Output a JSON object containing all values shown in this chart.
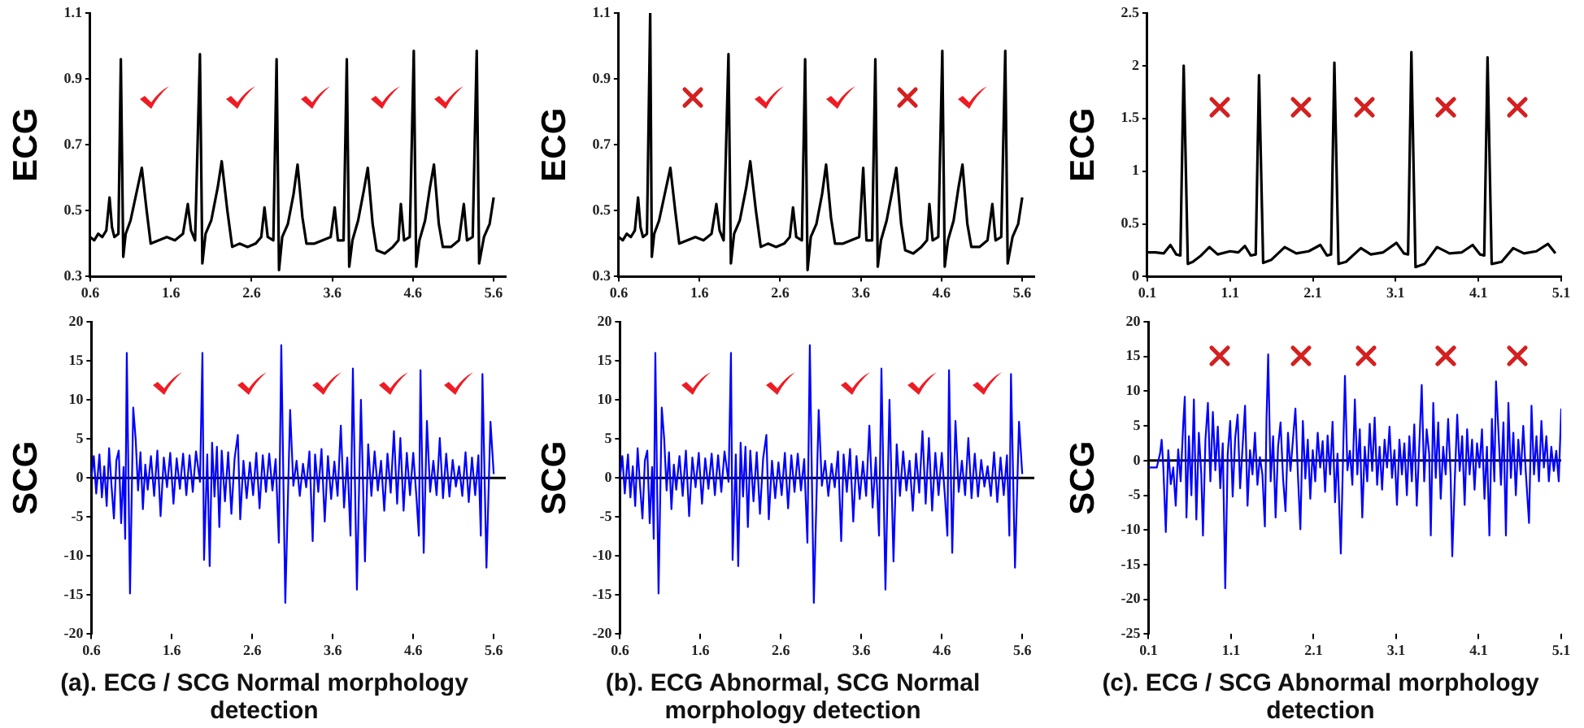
{
  "chart_data": [
    {
      "type": "line",
      "ylabel": "ECG",
      "xlim": [
        0.6,
        5.75
      ],
      "xticks": [
        0.6,
        1.6,
        2.6,
        3.6,
        4.6,
        5.6
      ],
      "ylim": [
        0.3,
        1.1
      ],
      "yticks": [
        0.3,
        0.5,
        0.7,
        0.9,
        1.1
      ],
      "series": [
        {
          "color": "#000000",
          "x": [
            0.6,
            0.65,
            0.7,
            0.75,
            0.8,
            0.84,
            0.87,
            0.9,
            0.95,
            0.98,
            1.01,
            1.04,
            1.1,
            1.17,
            1.24,
            1.3,
            1.35,
            1.45,
            1.55,
            1.65,
            1.75,
            1.81,
            1.85,
            1.9,
            1.96,
            1.99,
            2.03,
            2.1,
            2.18,
            2.23,
            2.3,
            2.36,
            2.45,
            2.55,
            2.65,
            2.72,
            2.76,
            2.8,
            2.87,
            2.91,
            2.94,
            2.98,
            3.05,
            3.12,
            3.17,
            3.23,
            3.28,
            3.38,
            3.48,
            3.58,
            3.63,
            3.67,
            3.74,
            3.78,
            3.81,
            3.85,
            3.92,
            3.99,
            4.04,
            4.1,
            4.15,
            4.25,
            4.35,
            4.42,
            4.45,
            4.49,
            4.56,
            4.61,
            4.64,
            4.68,
            4.75,
            4.81,
            4.86,
            4.92,
            4.97,
            5.07,
            5.17,
            5.23,
            5.27,
            5.34,
            5.39,
            5.42,
            5.48,
            5.55,
            5.6
          ],
          "values": [
            0.42,
            0.41,
            0.43,
            0.42,
            0.44,
            0.54,
            0.45,
            0.42,
            0.43,
            0.96,
            0.36,
            0.43,
            0.47,
            0.55,
            0.63,
            0.5,
            0.4,
            0.41,
            0.42,
            0.41,
            0.43,
            0.52,
            0.44,
            0.41,
            0.975,
            0.34,
            0.43,
            0.47,
            0.57,
            0.65,
            0.5,
            0.39,
            0.4,
            0.39,
            0.4,
            0.42,
            0.51,
            0.42,
            0.41,
            0.96,
            0.32,
            0.42,
            0.46,
            0.55,
            0.64,
            0.48,
            0.4,
            0.4,
            0.41,
            0.42,
            0.51,
            0.41,
            0.41,
            0.96,
            0.33,
            0.41,
            0.47,
            0.56,
            0.63,
            0.46,
            0.38,
            0.37,
            0.39,
            0.41,
            0.52,
            0.41,
            0.42,
            0.985,
            0.33,
            0.41,
            0.47,
            0.57,
            0.64,
            0.46,
            0.39,
            0.39,
            0.41,
            0.52,
            0.41,
            0.42,
            0.985,
            0.34,
            0.42,
            0.46,
            0.54
          ]
        }
      ]
    },
    {
      "type": "line",
      "ylabel": "ECG",
      "xlim": [
        0.6,
        5.75
      ],
      "xticks": [
        0.6,
        1.6,
        2.6,
        3.6,
        4.6,
        5.6
      ],
      "ylim": [
        0.3,
        1.1
      ],
      "yticks": [
        0.3,
        0.5,
        0.7,
        0.9,
        1.1
      ],
      "series": [
        {
          "color": "#000000",
          "x": [
            0.6,
            0.65,
            0.7,
            0.75,
            0.8,
            0.84,
            0.87,
            0.9,
            0.95,
            0.99,
            1.01,
            1.04,
            1.1,
            1.17,
            1.24,
            1.3,
            1.35,
            1.45,
            1.55,
            1.65,
            1.75,
            1.81,
            1.85,
            1.9,
            1.96,
            1.99,
            2.03,
            2.1,
            2.18,
            2.23,
            2.3,
            2.36,
            2.45,
            2.55,
            2.65,
            2.72,
            2.76,
            2.8,
            2.87,
            2.91,
            2.94,
            2.98,
            3.05,
            3.12,
            3.17,
            3.23,
            3.28,
            3.38,
            3.48,
            3.58,
            3.63,
            3.67,
            3.74,
            3.78,
            3.81,
            3.85,
            3.92,
            3.99,
            4.04,
            4.1,
            4.15,
            4.25,
            4.35,
            4.42,
            4.45,
            4.49,
            4.56,
            4.61,
            4.64,
            4.68,
            4.75,
            4.81,
            4.86,
            4.92,
            4.97,
            5.07,
            5.17,
            5.23,
            5.27,
            5.34,
            5.39,
            5.42,
            5.48,
            5.55,
            5.6
          ],
          "values": [
            0.42,
            0.41,
            0.43,
            0.42,
            0.44,
            0.54,
            0.45,
            0.42,
            0.43,
            1.1,
            0.36,
            0.43,
            0.47,
            0.55,
            0.63,
            0.5,
            0.4,
            0.41,
            0.42,
            0.41,
            0.43,
            0.52,
            0.44,
            0.41,
            0.975,
            0.34,
            0.43,
            0.47,
            0.57,
            0.65,
            0.5,
            0.39,
            0.4,
            0.39,
            0.4,
            0.42,
            0.51,
            0.42,
            0.41,
            0.96,
            0.32,
            0.42,
            0.46,
            0.55,
            0.64,
            0.48,
            0.4,
            0.4,
            0.41,
            0.42,
            0.63,
            0.41,
            0.41,
            0.96,
            0.33,
            0.41,
            0.47,
            0.56,
            0.63,
            0.46,
            0.38,
            0.37,
            0.39,
            0.41,
            0.52,
            0.41,
            0.42,
            0.985,
            0.33,
            0.41,
            0.47,
            0.57,
            0.64,
            0.46,
            0.39,
            0.39,
            0.41,
            0.52,
            0.41,
            0.42,
            0.985,
            0.34,
            0.42,
            0.46,
            0.54
          ]
        }
      ]
    },
    {
      "type": "line",
      "ylabel": "ECG",
      "xlim": [
        0.1,
        5.1
      ],
      "xticks": [
        0.1,
        1.1,
        2.1,
        3.1,
        4.1,
        5.1
      ],
      "ylim": [
        0,
        2.5
      ],
      "yticks": [
        0,
        0.5,
        1,
        1.5,
        2,
        2.5
      ],
      "series": [
        {
          "color": "#000000",
          "x": [
            0.1,
            0.2,
            0.3,
            0.38,
            0.45,
            0.5,
            0.54,
            0.59,
            0.65,
            0.75,
            0.85,
            0.95,
            1.1,
            1.2,
            1.28,
            1.35,
            1.41,
            1.45,
            1.5,
            1.6,
            1.76,
            1.9,
            2.05,
            2.19,
            2.27,
            2.32,
            2.36,
            2.41,
            2.5,
            2.68,
            2.8,
            2.95,
            3.11,
            3.2,
            3.25,
            3.29,
            3.34,
            3.45,
            3.6,
            3.75,
            3.9,
            4.03,
            4.12,
            4.17,
            4.21,
            4.26,
            4.38,
            4.52,
            4.65,
            4.8,
            4.94,
            5.03
          ],
          "values": [
            0.23,
            0.23,
            0.22,
            0.3,
            0.21,
            0.2,
            2.0,
            0.12,
            0.14,
            0.2,
            0.28,
            0.21,
            0.24,
            0.23,
            0.29,
            0.2,
            0.21,
            1.91,
            0.13,
            0.16,
            0.28,
            0.22,
            0.24,
            0.3,
            0.2,
            0.21,
            2.03,
            0.12,
            0.14,
            0.27,
            0.21,
            0.23,
            0.32,
            0.22,
            0.21,
            2.13,
            0.09,
            0.12,
            0.28,
            0.22,
            0.23,
            0.3,
            0.21,
            0.2,
            2.08,
            0.12,
            0.14,
            0.27,
            0.22,
            0.24,
            0.31,
            0.22
          ]
        }
      ]
    },
    {
      "type": "line",
      "ylabel": "SCG",
      "xlim": [
        0.6,
        5.75
      ],
      "xticks": [
        0.6,
        1.6,
        2.6,
        3.6,
        4.6,
        5.6
      ],
      "ylim": [
        -20,
        20
      ],
      "yticks": [
        -20,
        -15,
        -10,
        -5,
        0,
        5,
        10,
        15,
        20
      ],
      "annotations": [
        "(a). ECG / SCG Normal morphology detection"
      ],
      "series": [
        {
          "color": "#0000ff",
          "x": [
            0.6,
            0.63,
            0.66,
            0.7,
            0.73,
            0.76,
            0.79,
            0.82,
            0.85,
            0.88,
            0.91,
            0.94,
            0.97,
            1.0,
            1.02,
            1.04,
            1.08,
            1.12,
            1.15,
            1.18,
            1.21,
            1.24,
            1.27,
            1.3,
            1.34,
            1.38,
            1.42,
            1.46,
            1.5,
            1.54,
            1.58,
            1.62,
            1.66,
            1.7,
            1.74,
            1.78,
            1.82,
            1.86,
            1.9,
            1.95,
            1.98,
            2.0,
            2.04,
            2.07,
            2.1,
            2.13,
            2.16,
            2.19,
            2.22,
            2.26,
            2.3,
            2.34,
            2.38,
            2.42,
            2.45,
            2.49,
            2.53,
            2.57,
            2.61,
            2.65,
            2.69,
            2.73,
            2.77,
            2.81,
            2.85,
            2.89,
            2.93,
            2.96,
            3.01,
            3.07,
            3.11,
            3.15,
            3.19,
            3.23,
            3.27,
            3.31,
            3.35,
            3.38,
            3.42,
            3.46,
            3.5,
            3.54,
            3.58,
            3.62,
            3.66,
            3.7,
            3.74,
            3.78,
            3.82,
            3.85,
            3.9,
            3.95,
            4.0,
            4.04,
            4.08,
            4.12,
            4.16,
            4.2,
            4.24,
            4.28,
            4.32,
            4.36,
            4.4,
            4.44,
            4.48,
            4.52,
            4.56,
            4.6,
            4.64,
            4.67,
            4.69,
            4.73,
            4.77,
            4.81,
            4.85,
            4.89,
            4.93,
            4.97,
            5.01,
            5.05,
            5.09,
            5.13,
            5.17,
            5.21,
            5.25,
            5.29,
            5.33,
            5.37,
            5.41,
            5.44,
            5.46,
            5.51,
            5.56,
            5.6
          ],
          "values": [
            0,
            2.8,
            -2,
            3,
            -2.5,
            1.5,
            -3.6,
            3.8,
            -1,
            -5.2,
            2.2,
            3.5,
            -5.8,
            1.4,
            -7.8,
            16,
            -14.8,
            9,
            5,
            -1.6,
            3.3,
            -4,
            1.7,
            -1.5,
            2.8,
            -2.3,
            3.5,
            -4.9,
            2.6,
            -1.2,
            3.2,
            -3.3,
            2.5,
            -1.4,
            3.1,
            -2.2,
            2.9,
            -1.8,
            3.4,
            -0.5,
            16,
            -10.5,
            3,
            -11.3,
            4.5,
            -2.4,
            4,
            -6.3,
            3.5,
            -3,
            3.3,
            -4.6,
            2.5,
            5.5,
            -5.3,
            2.2,
            -2.6,
            2,
            -2.2,
            3.2,
            -3.9,
            2.9,
            -1.8,
            3.1,
            -1.6,
            2.4,
            -8.3,
            17,
            -16,
            8.7,
            -1,
            2.2,
            -2.3,
            1.8,
            -1.2,
            3.4,
            -8.1,
            3,
            -1.8,
            3.7,
            -5.6,
            2.8,
            -2.7,
            2.1,
            -2.3,
            6.7,
            -3.8,
            2.6,
            -7.4,
            14,
            -14.3,
            10,
            -10.7,
            4.3,
            -2.3,
            3.4,
            -1.6,
            2.2,
            -4.2,
            3.1,
            -1.9,
            6,
            -3.3,
            5.1,
            -4.2,
            3.2,
            -2.2,
            3.2,
            -2.5,
            -7.4,
            13.8,
            -9.6,
            7.3,
            -1.8,
            2.2,
            -2.2,
            5.1,
            -2.6,
            3.1,
            -2.4,
            2.3,
            -1.1,
            1.5,
            -2.3,
            3.3,
            -3.1,
            2.6,
            -2.2,
            2.9,
            -7.4,
            13.3,
            -11.5,
            7.2,
            0.5
          ]
        }
      ]
    },
    {
      "type": "line",
      "ylabel": "SCG",
      "xlim": [
        0.6,
        5.75
      ],
      "xticks": [
        0.6,
        1.6,
        2.6,
        3.6,
        4.6,
        5.6
      ],
      "ylim": [
        -20,
        20
      ],
      "yticks": [
        -20,
        -15,
        -10,
        -5,
        0,
        5,
        10,
        15,
        20
      ],
      "annotations": [
        "(b). ECG Abnormal, SCG Normal morphology detection"
      ],
      "series": [
        {
          "color": "#0000ff",
          "x": [
            0.6,
            0.63,
            0.66,
            0.7,
            0.73,
            0.76,
            0.79,
            0.82,
            0.85,
            0.88,
            0.91,
            0.94,
            0.97,
            1.0,
            1.02,
            1.04,
            1.08,
            1.12,
            1.15,
            1.18,
            1.21,
            1.24,
            1.27,
            1.3,
            1.34,
            1.38,
            1.42,
            1.46,
            1.5,
            1.54,
            1.58,
            1.62,
            1.66,
            1.7,
            1.74,
            1.78,
            1.82,
            1.86,
            1.9,
            1.95,
            1.98,
            2.0,
            2.04,
            2.07,
            2.1,
            2.13,
            2.16,
            2.19,
            2.22,
            2.26,
            2.3,
            2.34,
            2.38,
            2.42,
            2.45,
            2.49,
            2.53,
            2.57,
            2.61,
            2.65,
            2.69,
            2.73,
            2.77,
            2.81,
            2.85,
            2.89,
            2.93,
            2.96,
            3.01,
            3.07,
            3.11,
            3.15,
            3.19,
            3.23,
            3.27,
            3.31,
            3.35,
            3.38,
            3.42,
            3.46,
            3.5,
            3.54,
            3.58,
            3.62,
            3.66,
            3.7,
            3.74,
            3.78,
            3.82,
            3.85,
            3.9,
            3.95,
            4.0,
            4.04,
            4.08,
            4.12,
            4.16,
            4.2,
            4.24,
            4.28,
            4.32,
            4.36,
            4.4,
            4.44,
            4.48,
            4.52,
            4.56,
            4.6,
            4.64,
            4.67,
            4.69,
            4.73,
            4.77,
            4.81,
            4.85,
            4.89,
            4.93,
            4.97,
            5.01,
            5.05,
            5.09,
            5.13,
            5.17,
            5.21,
            5.25,
            5.29,
            5.33,
            5.37,
            5.41,
            5.44,
            5.46,
            5.51,
            5.56,
            5.6
          ],
          "values": [
            0,
            2.8,
            -2,
            3,
            -2.5,
            1.5,
            -3.6,
            3.8,
            -1,
            -5.2,
            2.2,
            3.5,
            -5.8,
            1.4,
            -7.8,
            16,
            -14.8,
            9,
            5,
            -1.6,
            3.3,
            -4,
            1.7,
            -1.5,
            2.8,
            -2.3,
            3.5,
            -4.9,
            2.6,
            -1.2,
            3.2,
            -3.3,
            2.5,
            -1.4,
            3.1,
            -2.2,
            2.9,
            -1.8,
            3.4,
            -0.5,
            16,
            -10.5,
            3,
            -11.3,
            4.5,
            -2.4,
            4,
            -6.3,
            3.5,
            -3,
            3.3,
            -4.6,
            2.5,
            5.5,
            -5.3,
            2.2,
            -2.6,
            2,
            -2.2,
            3.2,
            -3.9,
            2.9,
            -1.8,
            3.1,
            -1.6,
            2.4,
            -8.3,
            17,
            -16,
            8.7,
            -1,
            2.2,
            -2.3,
            1.8,
            -1.2,
            3.4,
            -8.1,
            3,
            -1.8,
            3.7,
            -5.6,
            2.8,
            -2.7,
            2.1,
            -2.3,
            6.7,
            -3.8,
            2.6,
            -7.4,
            14,
            -14.3,
            10,
            -10.7,
            4.3,
            -2.3,
            3.4,
            -1.6,
            2.2,
            -4.2,
            3.1,
            -1.9,
            6,
            -3.3,
            5.1,
            -4.2,
            3.2,
            -2.2,
            3.2,
            -2.5,
            -7.4,
            13.8,
            -9.6,
            7.3,
            -1.8,
            2.2,
            -2.2,
            5.1,
            -2.6,
            3.1,
            -2.4,
            2.3,
            -1.1,
            1.5,
            -2.3,
            3.3,
            -3.1,
            2.6,
            -2.2,
            2.9,
            -7.4,
            13.3,
            -11.5,
            7.2,
            0.5
          ]
        }
      ]
    },
    {
      "type": "line",
      "ylabel": "SCG",
      "xlim": [
        0.1,
        5.1
      ],
      "xticks": [
        0.1,
        1.1,
        2.1,
        3.1,
        4.1,
        5.1
      ],
      "ylim": [
        -25,
        20
      ],
      "yticks": [
        -25,
        -20,
        -15,
        -10,
        -5,
        0,
        5,
        10,
        15,
        20
      ],
      "annotations": [
        "(c). ECG / SCG Abnormal morphology detection"
      ],
      "series": [
        {
          "color": "#0000ff",
          "x": [
            0.1,
            0.2,
            0.24,
            0.26,
            0.28,
            0.31,
            0.34,
            0.37,
            0.4,
            0.43,
            0.46,
            0.49,
            0.52,
            0.54,
            0.56,
            0.59,
            0.62,
            0.65,
            0.68,
            0.71,
            0.74,
            0.76,
            0.79,
            0.82,
            0.85,
            0.88,
            0.91,
            0.94,
            0.97,
            1.0,
            1.03,
            1.06,
            1.09,
            1.12,
            1.15,
            1.18,
            1.21,
            1.24,
            1.27,
            1.3,
            1.33,
            1.36,
            1.39,
            1.42,
            1.45,
            1.48,
            1.51,
            1.53,
            1.55,
            1.58,
            1.61,
            1.64,
            1.67,
            1.7,
            1.73,
            1.76,
            1.79,
            1.82,
            1.85,
            1.88,
            1.91,
            1.94,
            1.97,
            2.0,
            2.03,
            2.06,
            2.09,
            2.12,
            2.15,
            2.18,
            2.21,
            2.24,
            2.27,
            2.3,
            2.33,
            2.36,
            2.39,
            2.43,
            2.48,
            2.51,
            2.54,
            2.57,
            2.6,
            2.63,
            2.66,
            2.69,
            2.72,
            2.75,
            2.78,
            2.81,
            2.84,
            2.87,
            2.9,
            2.93,
            2.96,
            2.99,
            3.02,
            3.05,
            3.08,
            3.11,
            3.14,
            3.17,
            3.2,
            3.23,
            3.26,
            3.29,
            3.32,
            3.35,
            3.38,
            3.41,
            3.44,
            3.47,
            3.5,
            3.52,
            3.55,
            3.58,
            3.61,
            3.64,
            3.67,
            3.7,
            3.73,
            3.76,
            3.78,
            3.81,
            3.84,
            3.87,
            3.9,
            3.93,
            3.96,
            3.99,
            4.02,
            4.05,
            4.08,
            4.11,
            4.14,
            4.17,
            4.2,
            4.23,
            4.26,
            4.29,
            4.31,
            4.34,
            4.37,
            4.4,
            4.43,
            4.46,
            4.49,
            4.52,
            4.55,
            4.58,
            4.61,
            4.64,
            4.67,
            4.71,
            4.74,
            4.77,
            4.8,
            4.83,
            4.86,
            4.89,
            4.92,
            4.95,
            4.98,
            5.01,
            5.04,
            5.07,
            5.1
          ],
          "values": [
            -1,
            -1,
            1,
            3,
            -1,
            -10.3,
            1.5,
            -3.4,
            -1,
            -6.5,
            1.6,
            -3,
            5,
            9.2,
            -8.2,
            3.5,
            -5,
            8.8,
            -8.5,
            4,
            -2,
            -10.8,
            3,
            8.3,
            -3,
            7,
            -1.4,
            4.9,
            -4,
            2.5,
            -18.4,
            1,
            5.7,
            -5.2,
            3.2,
            6.6,
            -4,
            2,
            7.9,
            -6.5,
            1.5,
            -2,
            4,
            -3.5,
            0.5,
            -2,
            -9.5,
            6,
            15.3,
            -3,
            3.5,
            -8.2,
            2,
            5.5,
            -2.5,
            -7.3,
            4,
            -1.5,
            3,
            7.5,
            -2,
            -9.9,
            5.7,
            -2.6,
            3,
            -5.5,
            1.5,
            -3,
            4,
            -1,
            2.8,
            -4.5,
            3.6,
            -2,
            5.6,
            -6,
            1,
            -13.4,
            12.2,
            -1.4,
            1.4,
            -3.5,
            8.8,
            -2,
            4.5,
            -8.2,
            2,
            -3,
            5.3,
            -1.5,
            6.2,
            -3.5,
            2,
            -4.2,
            3,
            -1,
            4.9,
            -2.5,
            1.5,
            -6.4,
            3,
            -2,
            2.5,
            -5,
            3.5,
            -3,
            5.2,
            -6.5,
            2,
            10.9,
            -3,
            4.5,
            1,
            -10.8,
            8.3,
            -2.5,
            5.5,
            -5.5,
            2,
            -2,
            6,
            -2,
            -13.8,
            -3,
            6.6,
            -1.5,
            3.5,
            -6.4,
            4.5,
            -2,
            3,
            -4.2,
            2.5,
            -1,
            4.5,
            -5.5,
            2,
            -10.8,
            6,
            -3,
            11.4,
            4,
            -3.5,
            5.5,
            -10.8,
            8.3,
            -2.5,
            4,
            -5,
            3,
            -2,
            5,
            -1.5,
            -9,
            7.9,
            -2,
            3.5,
            -3,
            5.7,
            -1,
            3.5,
            -3,
            2,
            -1.5,
            1.4,
            -3,
            7.5
          ]
        }
      ]
    }
  ]
}
